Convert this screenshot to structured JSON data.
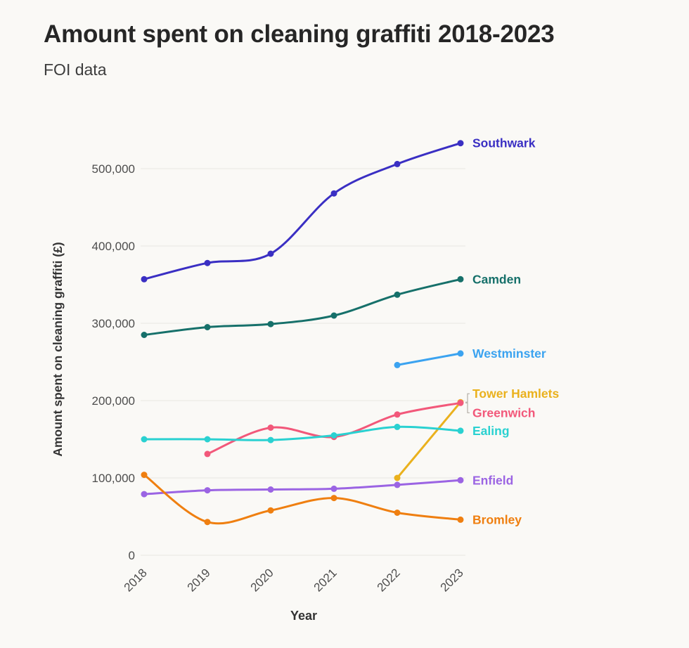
{
  "header": {
    "title": "Amount spent on cleaning graffiti 2018-2023",
    "subtitle": "FOI data"
  },
  "chart_data": {
    "type": "line",
    "title": "Amount spent on cleaning graffiti 2018-2023",
    "subtitle": "FOI data",
    "xlabel": "Year",
    "ylabel": "Amount spent on cleaning graffiti (£)",
    "categories": [
      "2018",
      "2019",
      "2020",
      "2021",
      "2022",
      "2023"
    ],
    "ylim": [
      0,
      550000
    ],
    "grid": true,
    "legend_position": "end-of-line-labels",
    "yticks": [
      {
        "value": 0,
        "label": "0"
      },
      {
        "value": 100000,
        "label": "100,000"
      },
      {
        "value": 200000,
        "label": "200,000"
      },
      {
        "value": 300000,
        "label": "300,000"
      },
      {
        "value": 400000,
        "label": "400,000"
      },
      {
        "value": 500000,
        "label": "500,000"
      }
    ],
    "series": [
      {
        "name": "Southwark",
        "color": "#3a2fc3",
        "values": [
          357000,
          378000,
          390000,
          468000,
          506000,
          533000
        ],
        "label_dy": 0
      },
      {
        "name": "Camden",
        "color": "#16706a",
        "values": [
          285000,
          295000,
          299000,
          310000,
          337000,
          357000
        ],
        "label_dy": 0
      },
      {
        "name": "Westminster",
        "color": "#3ba3f0",
        "values": [
          null,
          null,
          null,
          null,
          246000,
          261000
        ],
        "label_dy": 0
      },
      {
        "name": "Tower Hamlets",
        "color": "#eab11d",
        "values": [
          null,
          null,
          null,
          null,
          100000,
          198000
        ],
        "label_dy": -12
      },
      {
        "name": "Greenwich",
        "color": "#f2587a",
        "values": [
          null,
          131000,
          165000,
          153000,
          182000,
          197000
        ],
        "label_dy": 14
      },
      {
        "name": "Ealing",
        "color": "#2ad1d1",
        "values": [
          150000,
          150000,
          149000,
          155000,
          166000,
          161000
        ],
        "label_dy": 0
      },
      {
        "name": "Enfield",
        "color": "#9b64e3",
        "values": [
          79000,
          84000,
          85000,
          86000,
          91000,
          97000
        ],
        "label_dy": 0
      },
      {
        "name": "Bromley",
        "color": "#ef7f10",
        "values": [
          104000,
          43000,
          58000,
          74000,
          55000,
          46000
        ],
        "label_dy": 0
      }
    ]
  }
}
